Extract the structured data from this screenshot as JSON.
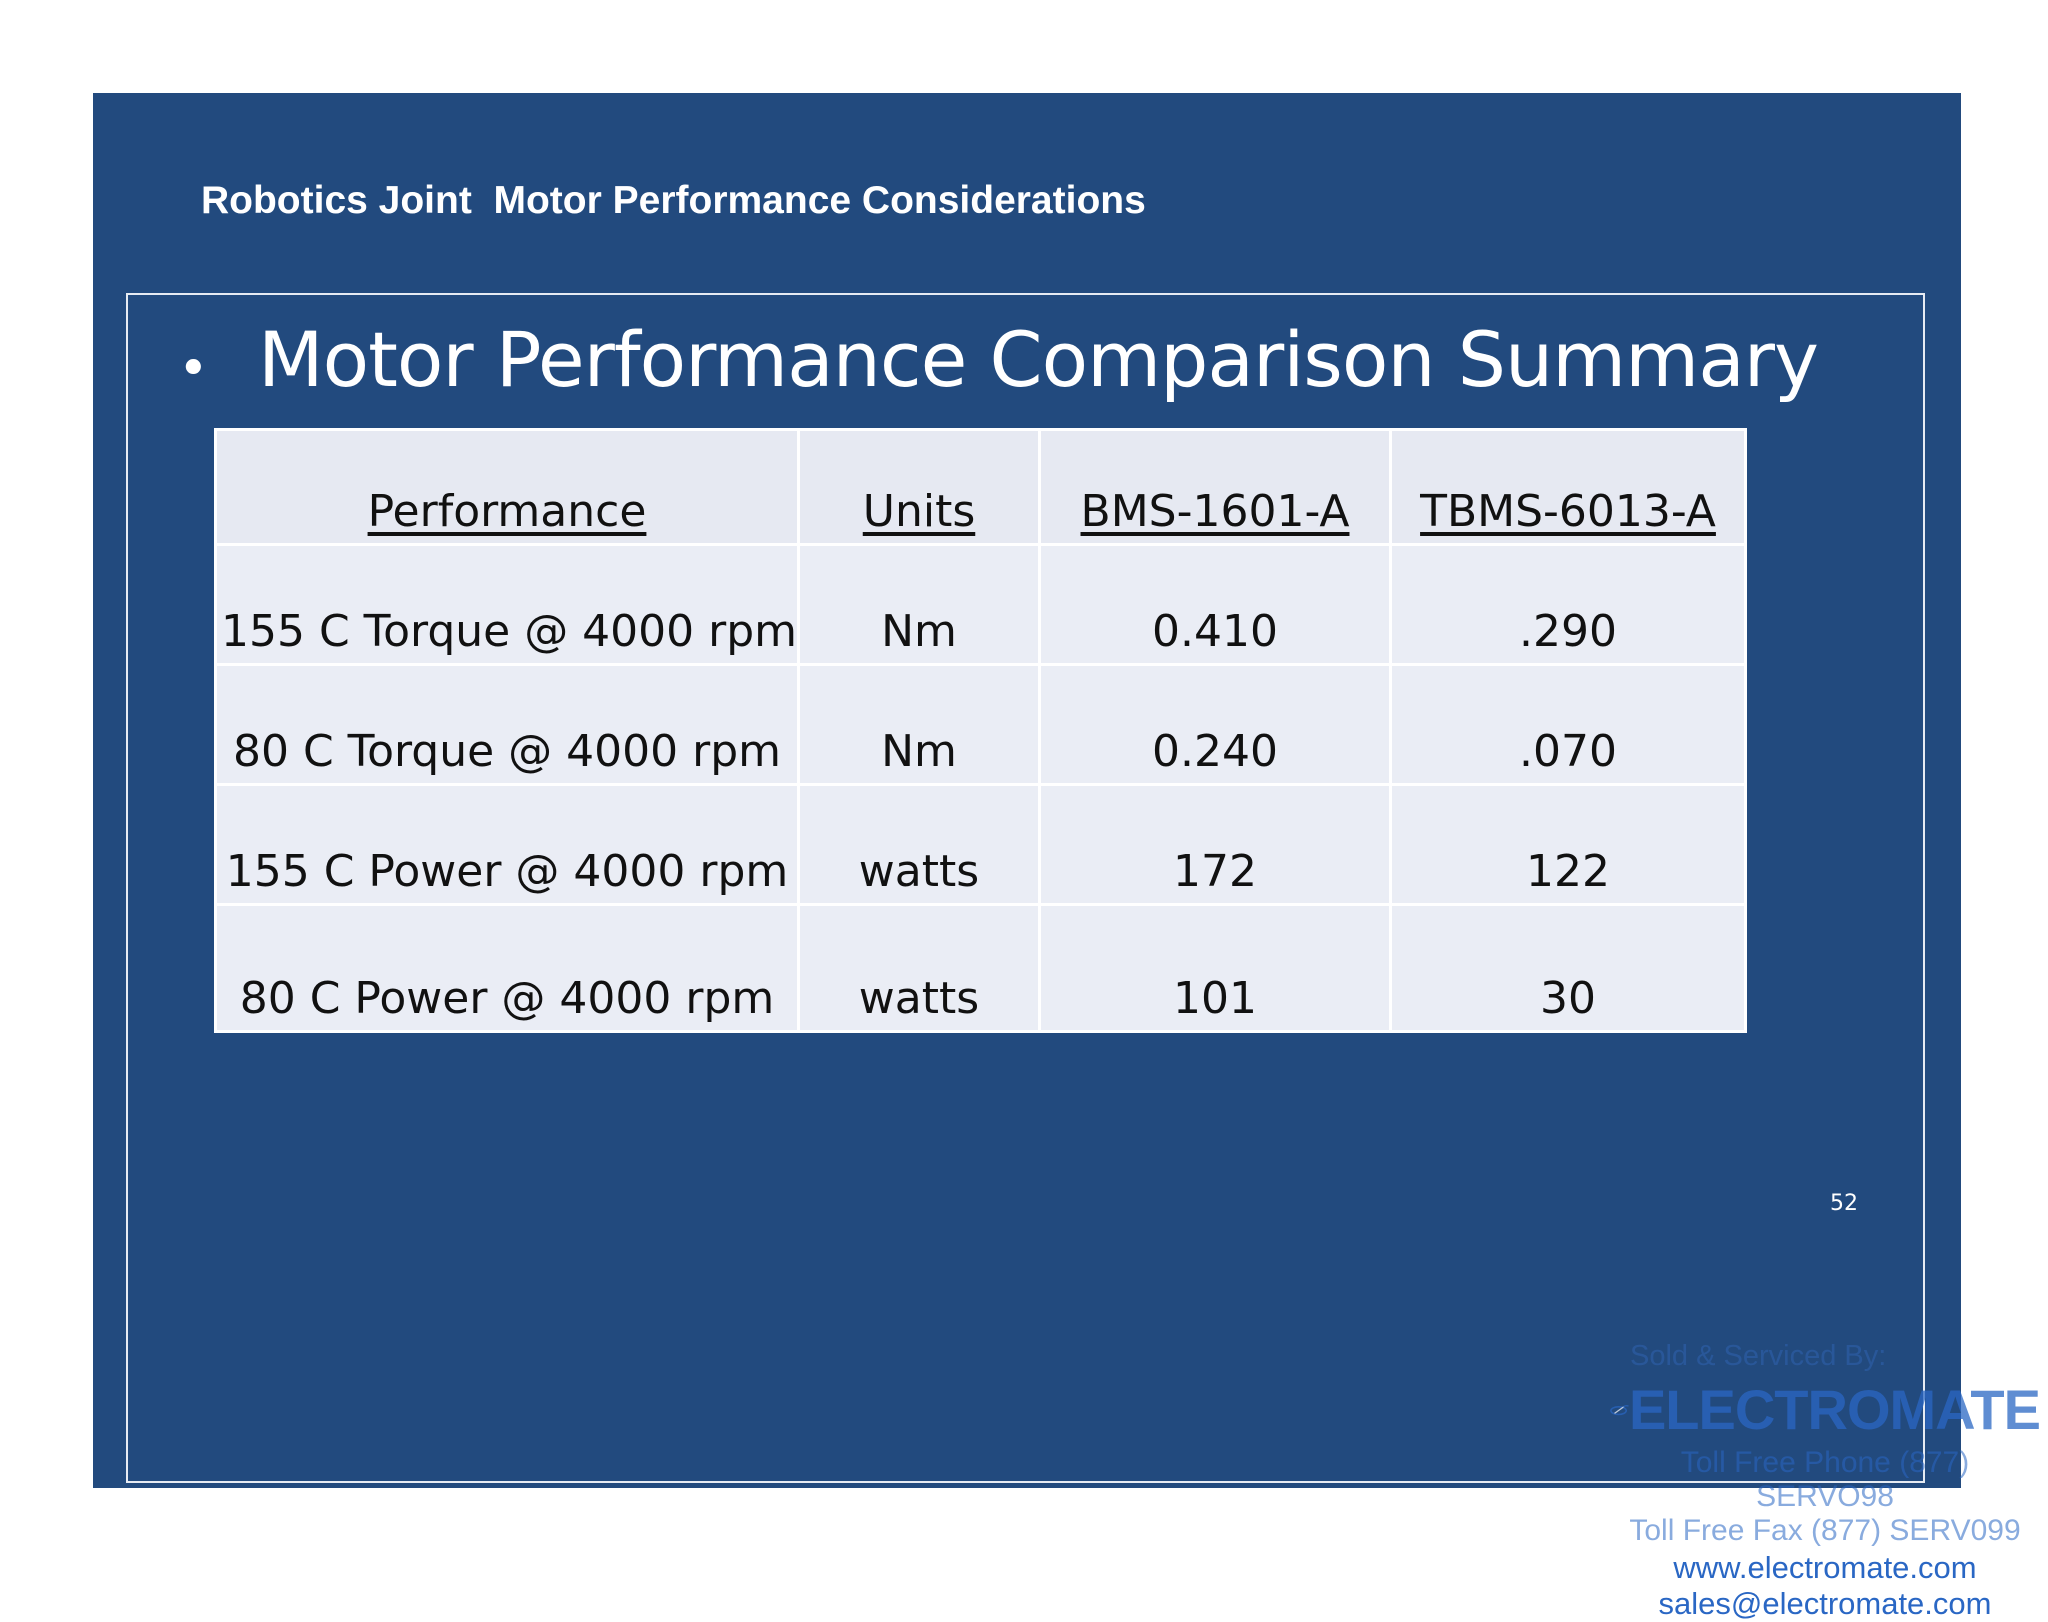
{
  "slide": {
    "header_title": "Robotics Joint  Motor Performance Considerations",
    "bullet": "Motor Performance Comparison Summary",
    "page_number": "52"
  },
  "table": {
    "headers": [
      "Performance",
      "Units",
      "BMS-1601-A",
      "TBMS-6013-A"
    ],
    "rows": [
      [
        "155 C Torque @ 4000 rpm",
        "Nm",
        "0.410",
        ".290"
      ],
      [
        "80 C Torque @ 4000 rpm",
        "Nm",
        "0.240",
        ".070"
      ],
      [
        "155 C Power @ 4000 rpm",
        "watts",
        "172",
        "122"
      ],
      [
        "80 C Power @ 4000 rpm",
        "watts",
        "101",
        "30"
      ]
    ]
  },
  "watermark": {
    "sold_by": "Sold & Serviced By:",
    "brand": "ELECTROMATE",
    "logo_icon": "electromate-swoosh-icon",
    "phone": "Toll Free Phone (877) SERVO98",
    "fax": "Toll Free Fax (877) SERV099",
    "website": "www.electromate.com",
    "email": "sales@electromate.com"
  },
  "colors": {
    "slide_background": "#224a7e",
    "table_background": "#eaedf5",
    "brand_blue": "#2a67c4"
  }
}
